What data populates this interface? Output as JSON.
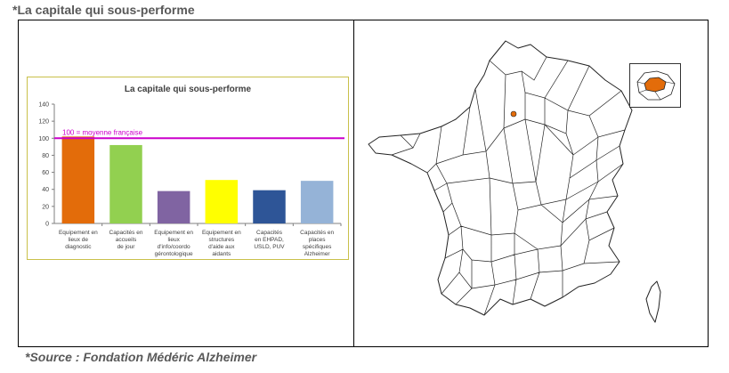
{
  "header": {
    "title": "*La capitale qui sous-performe"
  },
  "footer": {
    "source": "*Source : Fondation Médéric Alzheimer"
  },
  "chart_data": {
    "type": "bar",
    "title": "La capitale qui sous-performe",
    "categories": [
      "Equipement en lieux de diagnostic",
      "Capacités en accueils de jour",
      "Equipement en lieux d'info/coordo gérontologique",
      "Equipement en structures d'aide aux aidants",
      "Capacités en EHPAD, USLD, PUV",
      "Capacités en places spécifiques Alzheimer"
    ],
    "category_lines": [
      [
        "Equipement en",
        "lieux de",
        "diagnostic"
      ],
      [
        "Capacités en",
        "accueils",
        "de jour"
      ],
      [
        "Equipement en",
        "lieux",
        "d'info/coordo",
        "gérontologique"
      ],
      [
        "Equipement en",
        "structures",
        "d'aide aux",
        "aidants"
      ],
      [
        "Capacités",
        "en EHPAD,",
        "USLD, PUV"
      ],
      [
        "Capacités en",
        "places",
        "spécifiques",
        "Alzheimer"
      ]
    ],
    "values": [
      102,
      92,
      38,
      51,
      39,
      50
    ],
    "colors": [
      "#e36c0a",
      "#92d050",
      "#8064a2",
      "#ffff00",
      "#2e5597",
      "#95b3d7"
    ],
    "ylim": [
      0,
      140
    ],
    "yticks": [
      0,
      20,
      40,
      60,
      80,
      100,
      120,
      140
    ],
    "reference_line": {
      "value": 100,
      "label": "100 = moyenne française",
      "color": "#cc00cc"
    },
    "grid": false,
    "legend": "none"
  },
  "map": {
    "highlight_color": "#e36c0a"
  }
}
